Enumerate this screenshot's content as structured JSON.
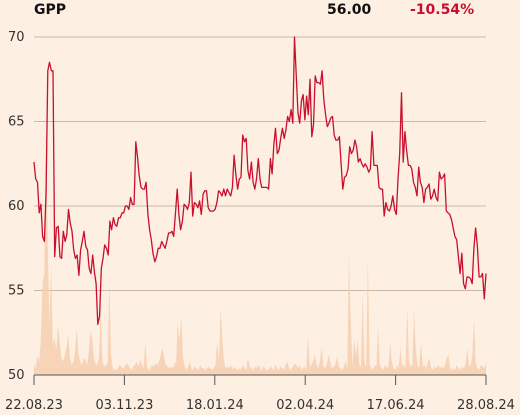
{
  "header": {
    "ticker": "GPP",
    "price": "56.00",
    "change": "-10.54%"
  },
  "colors": {
    "background": "#fdefe2",
    "line": "#c8102e",
    "volume": "#f6cfb0",
    "grid": "#c9b8a8",
    "axis": "#555555"
  },
  "chart_data": {
    "type": "line",
    "title": "GPP",
    "ylim": [
      50,
      70
    ],
    "yticks": [
      70,
      65,
      60,
      55,
      50
    ],
    "x_range": [
      "2023-08-22",
      "2024-08-28"
    ],
    "xtick_labels": [
      "22.08.23",
      "03.11.23",
      "18.01.24",
      "02.04.24",
      "17.06.24",
      "28.08.24"
    ],
    "grid": "horizontal",
    "series": [
      {
        "values": [
          62.6,
          61.6,
          61.4,
          59.6,
          60.1,
          58.2,
          57.9,
          60.9,
          68.0,
          68.5,
          68.0,
          68.0,
          57.0,
          58.7,
          58.8,
          57.0,
          56.9,
          58.5,
          57.9,
          58.3,
          59.8,
          59.0,
          58.5,
          57.4,
          56.9,
          57.1,
          55.9,
          57.4,
          57.9,
          58.5,
          57.6,
          57.4,
          56.3,
          56.0,
          57.1,
          56.1,
          55.4,
          53.0,
          53.5,
          56.3,
          56.9,
          57.7,
          57.5,
          57.1,
          59.1,
          58.6,
          59.3,
          58.9,
          58.8,
          59.3,
          59.3,
          59.6,
          59.6,
          60.0,
          60.0,
          59.8,
          60.5,
          60.1,
          60.1,
          63.8,
          62.9,
          61.8,
          61.1,
          61.0,
          61.0,
          61.4,
          59.5,
          58.6,
          58.0,
          57.2,
          56.7,
          57.0,
          57.5,
          57.5,
          57.9,
          57.7,
          57.5,
          57.9,
          58.4,
          58.4,
          58.5,
          58.2,
          59.6,
          61.0,
          59.5,
          58.6,
          59.1,
          60.1,
          60.0,
          59.8,
          60.2,
          62.0,
          59.4,
          60.2,
          60.1,
          59.9,
          60.3,
          59.5,
          60.7,
          60.9,
          60.9,
          59.9,
          59.7,
          59.7,
          59.7,
          59.8,
          60.2,
          60.9,
          60.8,
          60.6,
          61.0,
          60.6,
          61.0,
          60.8,
          60.6,
          61.1,
          63.0,
          61.9,
          61.0,
          61.6,
          61.7,
          64.2,
          63.8,
          64.0,
          62.1,
          61.6,
          62.6,
          61.4,
          61.0,
          61.6,
          62.8,
          61.6,
          61.1,
          61.1,
          61.1,
          61.1,
          61.0,
          62.8,
          61.9,
          63.6,
          64.6,
          63.1,
          63.3,
          64.0,
          64.6,
          64.0,
          64.5,
          65.3,
          65.0,
          65.7,
          64.9,
          70.0,
          67.8,
          65.5,
          64.9,
          66.2,
          66.6,
          65.1,
          66.5,
          65.4,
          67.5,
          64.1,
          64.8,
          67.7,
          67.3,
          67.3,
          67.2,
          68.0,
          66.3,
          65.4,
          64.7,
          64.9,
          65.2,
          65.3,
          64.2,
          63.9,
          63.9,
          64.1,
          62.5,
          61.0,
          61.7,
          61.8,
          62.2,
          63.5,
          63.1,
          63.3,
          63.9,
          63.5,
          62.6,
          62.8,
          62.5,
          62.3,
          62.5,
          62.3,
          62.0,
          62.2,
          64.4,
          62.4,
          62.4,
          62.4,
          61.1,
          61.0,
          61.0,
          59.4,
          60.2,
          59.8,
          59.7,
          60.0,
          60.6,
          59.8,
          59.5,
          61.6,
          63.1,
          66.7,
          62.6,
          64.4,
          63.3,
          62.4,
          62.4,
          62.2,
          61.4,
          61.1,
          60.6,
          62.3,
          61.4,
          61.1,
          60.2,
          61.0,
          61.1,
          61.3,
          60.4,
          60.6,
          61.0,
          60.5,
          60.3,
          62.0,
          61.6,
          61.7,
          61.9,
          59.7,
          59.6,
          59.5,
          59.2,
          58.7,
          58.2,
          58.0,
          57.0,
          56.0,
          57.2,
          55.4,
          55.1,
          55.8,
          55.8,
          55.7,
          55.4,
          57.5,
          58.7,
          57.6,
          55.8,
          55.8,
          56.0,
          54.5,
          56.0
        ]
      }
    ],
    "volume": [
      0.6,
      0.4,
      1.1,
      0.8,
      2.0,
      5.5,
      6.0,
      14.5,
      8.0,
      3.0,
      6.5,
      1.8,
      2.2,
      1.5,
      3.0,
      2.0,
      1.0,
      0.8,
      1.2,
      1.6,
      2.4,
      1.0,
      0.6,
      0.8,
      1.4,
      2.8,
      1.2,
      0.8,
      0.6,
      1.0,
      0.9,
      0.6,
      1.4,
      2.6,
      2.2,
      1.0,
      0.7,
      0.6,
      1.1,
      4.2,
      0.8,
      0.5,
      0.6,
      0.7,
      5.6,
      1.2,
      0.4,
      0.3,
      0.3,
      0.4,
      0.6,
      0.5,
      0.4,
      0.5,
      0.7,
      0.6,
      0.4,
      0.3,
      0.5,
      0.6,
      0.8,
      0.5,
      0.9,
      0.6,
      0.4,
      1.9,
      0.5,
      0.3,
      0.4,
      0.6,
      0.5,
      0.7,
      0.6,
      0.8,
      1.2,
      1.6,
      1.1,
      0.6,
      0.5,
      0.4,
      0.5,
      0.4,
      0.6,
      0.8,
      3.1,
      2.0,
      3.5,
      1.0,
      0.5,
      0.3,
      0.5,
      0.8,
      0.4,
      0.3,
      0.5,
      0.4,
      0.3,
      0.6,
      0.4,
      0.4,
      0.3,
      0.4,
      0.5,
      0.4,
      0.3,
      0.4,
      0.6,
      2.0,
      0.8,
      3.9,
      2.1,
      0.8,
      0.4,
      0.5,
      0.4,
      0.6,
      0.3,
      0.5,
      0.4,
      0.3,
      0.4,
      0.3,
      0.6,
      0.4,
      0.3,
      1.0,
      0.5,
      0.4,
      0.3,
      0.5,
      0.4,
      0.6,
      0.4,
      0.3,
      0.5,
      0.4,
      0.3,
      0.3,
      0.5,
      0.4,
      0.3,
      0.6,
      0.4,
      0.3,
      0.5,
      0.4,
      0.3,
      0.6,
      0.8,
      0.4,
      0.3,
      0.5,
      0.6,
      0.7,
      0.4,
      0.6,
      0.3,
      0.4,
      0.5,
      0.3,
      2.3,
      0.5,
      0.6,
      0.8,
      1.2,
      0.6,
      0.4,
      0.8,
      1.6,
      0.5,
      0.4,
      0.6,
      1.2,
      0.8,
      0.4,
      0.5,
      0.6,
      1.1,
      0.5,
      0.4,
      0.3,
      0.5,
      0.8,
      0.4,
      7.1,
      3.2,
      0.5,
      2.2,
      1.1,
      2.1,
      0.6,
      0.5,
      4.8,
      0.8,
      0.4,
      7.0,
      0.6,
      0.4,
      0.3,
      0.6,
      0.5,
      2.9,
      0.6,
      0.4,
      0.3,
      0.6,
      0.4,
      0.5,
      1.9,
      0.8,
      0.4,
      0.3,
      0.6,
      0.4,
      1.6,
      0.5,
      0.6,
      0.4,
      4.0,
      0.8,
      0.5,
      0.6,
      3.9,
      1.5,
      0.6,
      0.4,
      1.9,
      0.5,
      0.6,
      0.4,
      0.8,
      1.0,
      0.4,
      0.3,
      0.5,
      0.4,
      0.6,
      0.4,
      0.5,
      0.4,
      0.6,
      1.0,
      1.2,
      0.5,
      0.3,
      0.4,
      0.3,
      0.6,
      0.4,
      0.3,
      0.5,
      0.4,
      0.6,
      1.6,
      0.6,
      0.5,
      1.2,
      3.3,
      0.8,
      0.4,
      0.3,
      0.6,
      0.5,
      0.4,
      0.8
    ]
  }
}
